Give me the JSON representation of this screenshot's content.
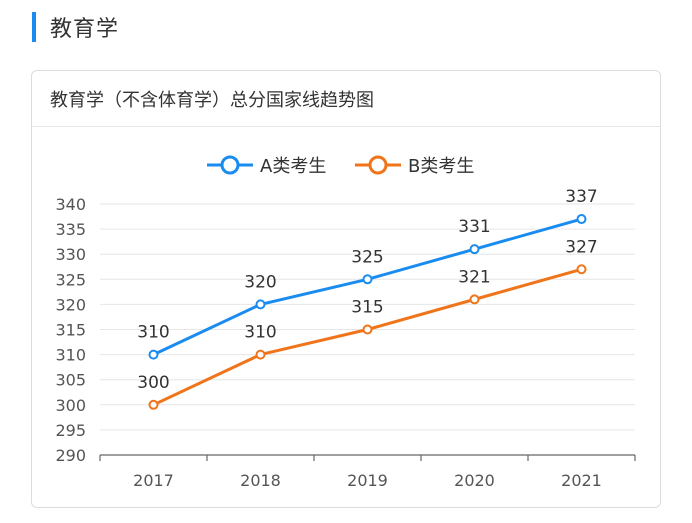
{
  "section": {
    "title": "教育学"
  },
  "card": {
    "title": "教育学（不含体育学）总分国家线趋势图"
  },
  "colors": {
    "accent": "#1a8cf0",
    "series_a": "#1a8cf0",
    "series_b": "#f0741a"
  },
  "chart_data": {
    "type": "line",
    "title": "教育学（不含体育学）总分国家线趋势图",
    "categories": [
      "2017",
      "2018",
      "2019",
      "2020",
      "2021"
    ],
    "series": [
      {
        "name": "A类考生",
        "values": [
          310,
          320,
          325,
          331,
          337
        ]
      },
      {
        "name": "B类考生",
        "values": [
          300,
          310,
          315,
          321,
          327
        ]
      }
    ],
    "ylim": [
      290,
      340
    ],
    "yticks": [
      290,
      295,
      300,
      305,
      310,
      315,
      320,
      325,
      330,
      335,
      340
    ],
    "grid": true,
    "legend_position": "top-center",
    "data_labels": true
  }
}
